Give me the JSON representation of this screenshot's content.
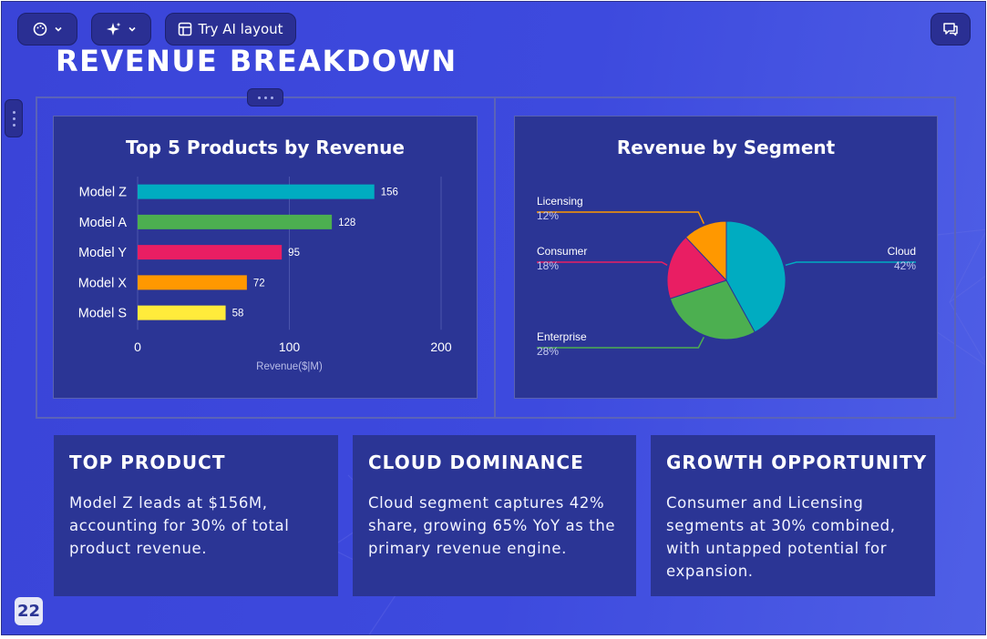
{
  "toolbar": {
    "theme_icon": "palette-icon",
    "ai_icon": "sparkle-icon",
    "try_ai_label": "Try AI layout",
    "comment_icon": "chat-icon"
  },
  "slide": {
    "title": "REVENUE BREAKDOWN",
    "page_number": "22"
  },
  "colors": {
    "background": "#3d4ade",
    "card": "#2b3595",
    "cyan": "#00acc1",
    "green": "#4caf50",
    "pink": "#e91e63",
    "orange": "#ff9800",
    "yellow": "#ffeb3b"
  },
  "chart_data": [
    {
      "type": "bar",
      "orientation": "horizontal",
      "title": "Top 5 Products by Revenue",
      "categories": [
        "Model Z",
        "Model A",
        "Model Y",
        "Model X",
        "Model S"
      ],
      "values": [
        156,
        128,
        95,
        72,
        58
      ],
      "data_labels": [
        "156",
        "128",
        "95",
        "72",
        "58"
      ],
      "colors": [
        "#00acc1",
        "#4caf50",
        "#e91e63",
        "#ff9800",
        "#ffeb3b"
      ],
      "xlabel": "Revenue($|M)",
      "xlim": [
        0,
        200
      ],
      "xticks": [
        "0",
        "100",
        "200"
      ],
      "grid": true
    },
    {
      "type": "pie",
      "title": "Revenue by Segment",
      "slices": [
        {
          "label": "Cloud",
          "value": 42,
          "pct_label": "42%",
          "color": "#00acc1",
          "side": "right"
        },
        {
          "label": "Enterprise",
          "value": 28,
          "pct_label": "28%",
          "color": "#4caf50",
          "side": "left"
        },
        {
          "label": "Consumer",
          "value": 18,
          "pct_label": "18%",
          "color": "#e91e63",
          "side": "left"
        },
        {
          "label": "Licensing",
          "value": 12,
          "pct_label": "12%",
          "color": "#ff9800",
          "side": "left"
        }
      ]
    }
  ],
  "cards": [
    {
      "title": "TOP PRODUCT",
      "body": "Model Z leads at $156M, accounting for 30% of total product revenue."
    },
    {
      "title": "CLOUD DOMINANCE",
      "body": "Cloud segment captures 42% share, growing 65% YoY as the primary revenue engine."
    },
    {
      "title": "GROWTH OPPORTUNITY",
      "body": "Consumer and Licensing segments at 30% combined, with untapped potential for expansion."
    }
  ]
}
